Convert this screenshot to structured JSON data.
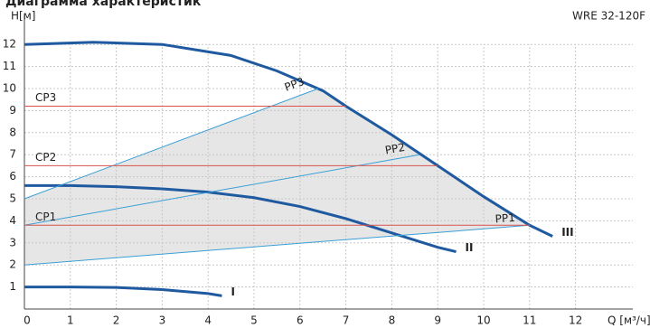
{
  "chart_data": {
    "type": "line",
    "title": "Диаграмма характеристик",
    "subtitle": "WRE 32-120F",
    "y_label": "H[м]",
    "x_label": "Q [м³/ч]",
    "xlim": [
      0,
      13.25
    ],
    "ylim": [
      0,
      13.4
    ],
    "xticks": [
      0,
      1,
      2,
      3,
      4,
      5,
      6,
      7,
      8,
      9,
      10,
      11,
      12
    ],
    "yticks": [
      1,
      2,
      3,
      4,
      5,
      6,
      7,
      8,
      9,
      10,
      11,
      12
    ],
    "grid": true,
    "shade_color": "#e6e6e6",
    "series": [
      {
        "name": "III",
        "color": "#1f5aa0",
        "x": [
          0,
          1.5,
          3,
          4.5,
          5.5,
          6.5,
          7,
          8,
          9,
          10,
          11,
          11.5
        ],
        "values": [
          12,
          12.1,
          12,
          11.5,
          10.8,
          9.9,
          9.2,
          7.9,
          6.5,
          5.1,
          3.8,
          3.3
        ]
      },
      {
        "name": "II",
        "color": "#1f5aa0",
        "x": [
          0,
          1,
          2,
          3,
          4,
          5,
          6,
          7,
          8,
          9,
          9.4
        ],
        "values": [
          5.6,
          5.6,
          5.55,
          5.45,
          5.3,
          5.05,
          4.65,
          4.1,
          3.45,
          2.8,
          2.6
        ]
      },
      {
        "name": "I",
        "color": "#1f5aa0",
        "x": [
          0,
          1,
          2,
          3,
          4,
          4.3
        ],
        "values": [
          1.0,
          1.0,
          0.98,
          0.88,
          0.7,
          0.6
        ]
      },
      {
        "name": "PP3",
        "color": "#3a9fd6",
        "x": [
          0,
          6.4
        ],
        "values": [
          5.0,
          10.0
        ]
      },
      {
        "name": "PP2",
        "color": "#3a9fd6",
        "x": [
          0,
          8.6
        ],
        "values": [
          3.8,
          7.0
        ]
      },
      {
        "name": "PP1",
        "color": "#3a9fd6",
        "x": [
          0,
          11
        ],
        "values": [
          2.0,
          3.8
        ]
      },
      {
        "name": "CP3",
        "color": "#d9534f",
        "x": [
          0,
          7
        ],
        "values": [
          9.2,
          9.2
        ]
      },
      {
        "name": "CP2",
        "color": "#d9534f",
        "x": [
          0,
          9
        ],
        "values": [
          6.5,
          6.5
        ]
      },
      {
        "name": "CP1",
        "color": "#d9534f",
        "x": [
          0,
          11
        ],
        "values": [
          3.8,
          3.8
        ]
      }
    ]
  }
}
